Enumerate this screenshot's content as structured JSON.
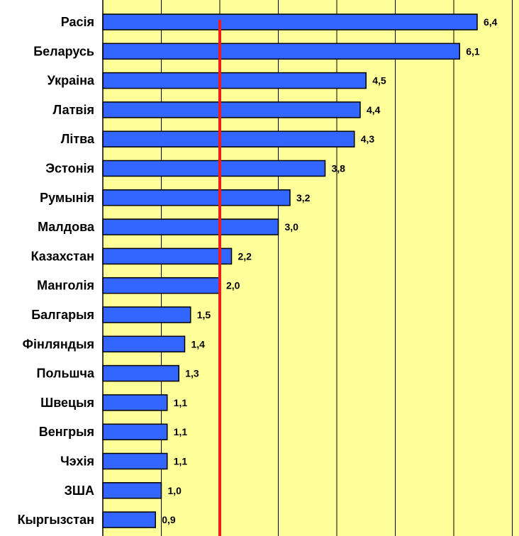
{
  "chart_data": {
    "type": "bar",
    "orientation": "horizontal",
    "categories": [
      "Расія",
      "Беларусь",
      "Украіна",
      "Латвія",
      "Літва",
      "Эстонія",
      "Румынія",
      "Малдова",
      "Казахстан",
      "Манголія",
      "Балгарыя",
      "Фінляндыя",
      "Польшча",
      "Швецыя",
      "Венгрыя",
      "Чэхія",
      "ЗША",
      "Кыргызстан"
    ],
    "values": [
      6.4,
      6.1,
      4.5,
      4.4,
      4.3,
      3.8,
      3.2,
      3.0,
      2.2,
      2.0,
      1.5,
      1.4,
      1.3,
      1.1,
      1.1,
      1.1,
      1.0,
      0.9
    ],
    "value_labels": [
      "6,4",
      "6,1",
      "4,5",
      "4,4",
      "4,3",
      "3,8",
      "3,2",
      "3,0",
      "2,2",
      "2,0",
      "1,5",
      "1,4",
      "1,3",
      "1,1",
      "1,1",
      "1,1",
      "1,0",
      "0,9"
    ],
    "xlim": [
      0,
      7
    ],
    "reference_line": 2.0,
    "grid": true,
    "title": "",
    "xlabel": "",
    "ylabel": ""
  },
  "colors": {
    "plot_background": "#ffff99",
    "bar_fill": "#3366ff",
    "bar_stroke": "#000000",
    "reference_line": "#ee1c1c",
    "grid": "#000000"
  }
}
